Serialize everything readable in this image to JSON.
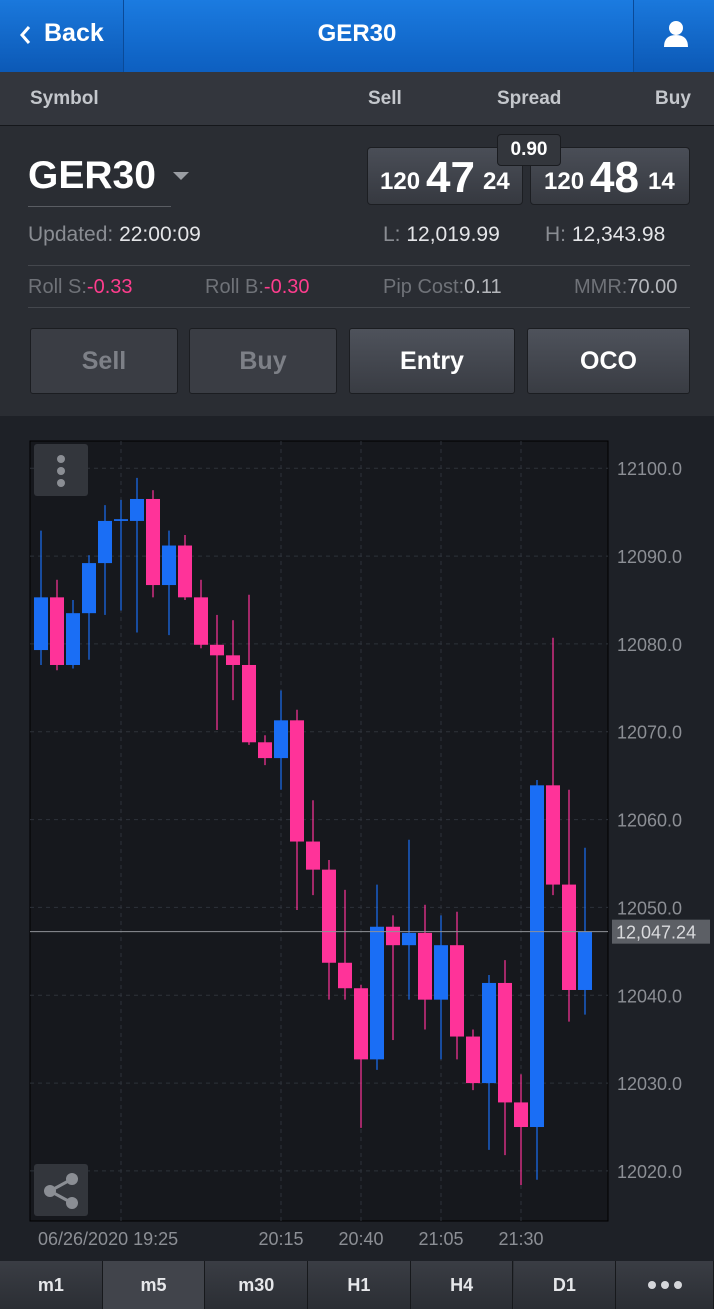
{
  "nav": {
    "back": "Back",
    "title": "GER30"
  },
  "columns": [
    "Symbol",
    "Sell",
    "Spread",
    "Buy"
  ],
  "quote": {
    "symbol": "GER30",
    "sell": {
      "pre": "120",
      "big": "47",
      "post": "24"
    },
    "spread": "0.90",
    "buy": {
      "pre": "120",
      "big": "48",
      "post": "14"
    },
    "updated_label": "Updated:",
    "updated": "22:00:09",
    "low_label": "L:",
    "low": "12,019.99",
    "high_label": "H:",
    "high": "12,343.98"
  },
  "stats": [
    {
      "label": "Roll S:",
      "value": "-0.33"
    },
    {
      "label": "Roll B:",
      "value": "-0.30"
    },
    {
      "label": "Pip Cost:",
      "value": "0.11"
    },
    {
      "label": "MMR:",
      "value": "70.00"
    }
  ],
  "buttons": [
    "Sell",
    "Buy",
    "Entry",
    "OCO"
  ],
  "chart_data": {
    "type": "candlestick",
    "categories": [
      null,
      null,
      null,
      null,
      null,
      "06/26/2020 19:25",
      null,
      null,
      null,
      null,
      null,
      null,
      null,
      null,
      null,
      "20:15",
      null,
      null,
      null,
      null,
      "20:40",
      null,
      null,
      null,
      null,
      "21:05",
      null,
      null,
      null,
      null,
      "21:30",
      null,
      null,
      null,
      null
    ],
    "up_color": "#1a6ef5",
    "down_color": "#ff3399",
    "open": [
      12079.3,
      12085.3,
      12077.6,
      12083.5,
      12089.2,
      12094.0,
      12094.0,
      12096.5,
      12086.7,
      12091.2,
      12085.3,
      12079.9,
      12078.7,
      12077.6,
      12068.8,
      12067.0,
      12071.3,
      12057.5,
      12054.3,
      12043.7,
      12040.8,
      12032.7,
      12047.8,
      12045.7,
      12047.1,
      12039.5,
      12045.7,
      12035.3,
      12030.0,
      12041.4,
      12027.8,
      12025.0,
      12063.9,
      12052.6,
      12040.6
    ],
    "high": [
      12092.9,
      12087.3,
      12085.0,
      12090.1,
      12095.8,
      12096.4,
      12098.9,
      12097.5,
      12092.9,
      12092.4,
      12087.3,
      12083.3,
      12082.7,
      12085.6,
      12069.6,
      12074.7,
      12072.5,
      12062.2,
      12055.4,
      12052.0,
      12041.2,
      12052.6,
      12049.1,
      12057.7,
      12050.3,
      12049.1,
      12049.5,
      12036.1,
      12042.3,
      12044.0,
      12031.0,
      12064.5,
      12080.7,
      12063.4,
      12056.8
    ],
    "low": [
      12077.6,
      12077.0,
      12077.2,
      12078.2,
      12083.3,
      12083.8,
      12081.3,
      12085.3,
      12081.0,
      12085.0,
      12079.5,
      12070.2,
      12073.6,
      12068.5,
      12066.2,
      12063.4,
      12049.7,
      12051.4,
      12039.5,
      12039.5,
      12024.9,
      12031.5,
      12034.9,
      12039.5,
      12036.1,
      12032.7,
      12032.7,
      12029.2,
      12022.4,
      12021.8,
      12018.4,
      12019.0,
      12051.4,
      12037.0,
      12037.8
    ],
    "close": [
      12085.3,
      12077.6,
      12083.5,
      12089.2,
      12094.0,
      12094.2,
      12096.5,
      12086.7,
      12091.2,
      12085.3,
      12079.9,
      12078.7,
      12077.6,
      12068.8,
      12067.0,
      12071.3,
      12057.5,
      12054.3,
      12043.7,
      12040.8,
      12032.7,
      12047.8,
      12045.7,
      12047.1,
      12039.5,
      12045.7,
      12035.3,
      12030.0,
      12041.4,
      12027.8,
      12025.0,
      12063.9,
      12052.6,
      12040.6,
      12047.2
    ],
    "ylim": [
      12014.3,
      12103.1
    ],
    "yticks": [
      {
        "value": 12020,
        "label": "12020.0"
      },
      {
        "value": 12030,
        "label": "12030.0"
      },
      {
        "value": 12040,
        "label": "12040.0"
      },
      {
        "value": 12050,
        "label": "12050.0"
      },
      {
        "value": 12060,
        "label": "12060.0"
      },
      {
        "value": 12070,
        "label": "12070.0"
      },
      {
        "value": 12080,
        "label": "12080.0"
      },
      {
        "value": 12090,
        "label": "12090.0"
      },
      {
        "value": 12100,
        "label": "12100.0"
      }
    ],
    "grid": true,
    "current": {
      "value": 12047.24,
      "label": "12,047.24"
    }
  },
  "tabs": [
    "m1",
    "m5",
    "m30",
    "H1",
    "H4",
    "D1"
  ]
}
